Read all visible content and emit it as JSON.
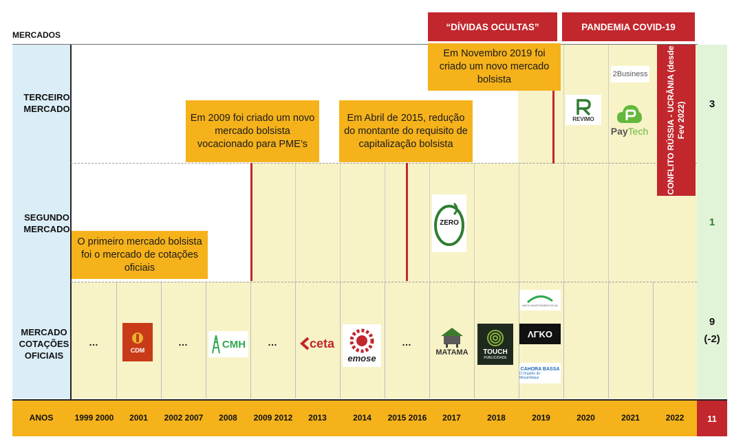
{
  "header": {
    "mercados_label": "MERCADOS"
  },
  "periods": [
    {
      "label": "“DÍVIDAS OCULTAS”"
    },
    {
      "label": "PANDEMIA COVID-19"
    }
  ],
  "rows": {
    "terceiro": {
      "label": "TERCEIRO MERCADO",
      "count": "3"
    },
    "segundo": {
      "label": "SEGUNDO MERCADO",
      "count": "1"
    },
    "oficiais": {
      "label": "MERCADO COTAÇÕES OFICIAIS",
      "count_main": "9",
      "count_sub": "(-2)"
    }
  },
  "years": {
    "label": "ANOS",
    "items": [
      "1999 2000",
      "2001",
      "2002 2007",
      "2008",
      "2009 2012",
      "2013",
      "2014",
      "2015 2016",
      "2017",
      "2018",
      "2019",
      "2020",
      "2021",
      "2022"
    ],
    "total": "11"
  },
  "ellipsis": "…",
  "notes": {
    "n2009": "Em 2009 foi criado um novo mercado bolsista vocacionado para PME’s",
    "n2015": "Em Abril de 2015, redução do montante do requisito de capitalização bolsista",
    "n2019": "Em Novembro 2019 foi criado um novo mercado bolsista",
    "nfirst": "O primeiro mercado bolsista foi o mercado de cotações oficiais"
  },
  "conflict": "CONFLITO RÚSSIA - UCRÂNIA (desde Fev 2022)",
  "logos": {
    "cdm": "CDM",
    "cmh": "CMH",
    "ceta": "ceta",
    "emose": "emose",
    "matama": "MATAMA",
    "touch": "TOUCH",
    "touch_sub": "PUBLICIDADE",
    "arco_top": "ARCO INVESTIMENTOS SA",
    "arko": "ΛΓKO",
    "hcb1": "CAHORA BASSA",
    "hcb2": "O Orgulho de Moçambique",
    "zero": "ZERO",
    "revimo": "REVIMO",
    "twob": "2Business",
    "paytech_a": "Pay",
    "paytech_b": "Tech"
  },
  "colors": {
    "accent_orange": "#f5b21b",
    "period_red": "#c1272d",
    "years_bar": "#f5b21b",
    "label_blue": "#dbeef7",
    "cell_yellow": "#f7f3c7",
    "count_green": "#e2f4d8"
  }
}
